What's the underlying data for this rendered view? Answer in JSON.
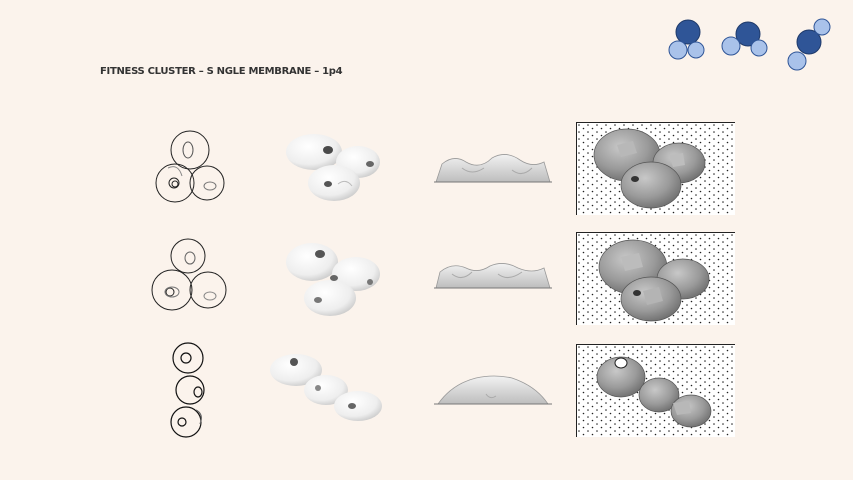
{
  "header": {
    "title": "FITNESS CLUSTER – S NGLE MEMBRANE – 1p4"
  },
  "logos": [
    {
      "name": "cluster-icon-1"
    },
    {
      "name": "cluster-icon-2"
    },
    {
      "name": "cluster-icon-3"
    }
  ],
  "colors": {
    "background": "#fbf3ec",
    "dark_blue": "#2f5597",
    "light_blue": "#a9c2ea",
    "shell_grey": "#9a9a9a"
  },
  "rows": [
    {
      "id": "row-1",
      "views": [
        "plan-sketch",
        "white-render",
        "elevation",
        "shaded-render"
      ]
    },
    {
      "id": "row-2",
      "views": [
        "plan-sketch",
        "white-render",
        "elevation",
        "shaded-render"
      ]
    },
    {
      "id": "row-3",
      "views": [
        "plan-sketch",
        "white-render",
        "elevation",
        "shaded-render"
      ]
    }
  ]
}
